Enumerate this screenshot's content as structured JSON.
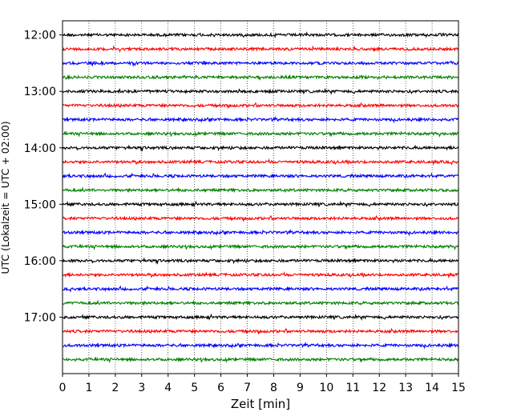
{
  "chart_data": {
    "type": "line",
    "title": "",
    "xlabel": "Zeit  [min]",
    "ylabel": "UTC (Lokalzeit = UTC + 02:00)",
    "xlim": [
      0,
      15
    ],
    "x_ticks": [
      "0",
      "1",
      "2",
      "3",
      "4",
      "5",
      "6",
      "7",
      "8",
      "9",
      "10",
      "11",
      "12",
      "13",
      "14",
      "15"
    ],
    "y_ticks": [
      "12:00",
      "13:00",
      "14:00",
      "15:00",
      "16:00",
      "17:00"
    ],
    "ylim": [
      "11:45",
      "18:00"
    ],
    "grid": "vertical dotted at each minute",
    "trace_colors": [
      "#000000",
      "#ff0000",
      "#0000ff",
      "#008000"
    ],
    "series": [
      {
        "start": "12:00",
        "color": "#000000"
      },
      {
        "start": "12:15",
        "color": "#ff0000"
      },
      {
        "start": "12:30",
        "color": "#0000ff"
      },
      {
        "start": "12:45",
        "color": "#008000"
      },
      {
        "start": "13:00",
        "color": "#000000"
      },
      {
        "start": "13:15",
        "color": "#ff0000"
      },
      {
        "start": "13:30",
        "color": "#0000ff"
      },
      {
        "start": "13:45",
        "color": "#008000"
      },
      {
        "start": "14:00",
        "color": "#000000"
      },
      {
        "start": "14:15",
        "color": "#ff0000"
      },
      {
        "start": "14:30",
        "color": "#0000ff"
      },
      {
        "start": "14:45",
        "color": "#008000"
      },
      {
        "start": "15:00",
        "color": "#000000"
      },
      {
        "start": "15:15",
        "color": "#ff0000"
      },
      {
        "start": "15:30",
        "color": "#0000ff"
      },
      {
        "start": "15:45",
        "color": "#008000"
      },
      {
        "start": "16:00",
        "color": "#000000"
      },
      {
        "start": "16:15",
        "color": "#ff0000"
      },
      {
        "start": "16:30",
        "color": "#0000ff"
      },
      {
        "start": "16:45",
        "color": "#008000"
      },
      {
        "start": "17:00",
        "color": "#000000"
      },
      {
        "start": "17:15",
        "color": "#ff0000"
      },
      {
        "start": "17:30",
        "color": "#0000ff"
      },
      {
        "start": "17:45",
        "color": "#008000"
      }
    ]
  }
}
